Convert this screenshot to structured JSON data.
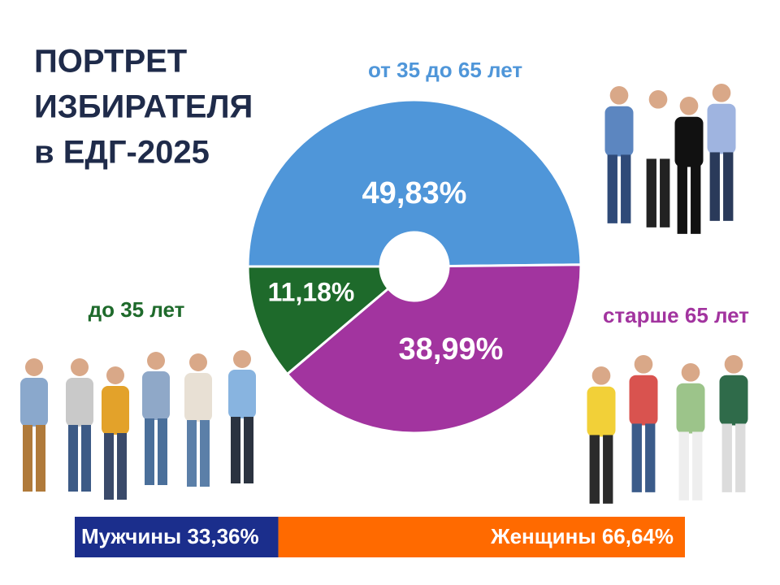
{
  "chart_data": [
    {
      "type": "donut",
      "title": [
        "ПОРТРЕТ",
        "ИЗБИРАТЕЛЯ",
        "в ЕДГ-2025"
      ],
      "categories": [
        "от 35 до 65 лет",
        "старше 65 лет",
        "до 35 лет"
      ],
      "values": [
        49.83,
        38.99,
        11.18
      ],
      "value_labels": [
        "49,83%",
        "38,99%",
        "11,18%"
      ],
      "colors": [
        "#4f96d9",
        "#a2349f",
        "#1e6a2b"
      ]
    },
    {
      "type": "stacked-bar",
      "series": [
        {
          "name": "Мужчины",
          "color": "#1b2e8c",
          "values": [
            33.36
          ],
          "value_labels": [
            "33,36%"
          ]
        },
        {
          "name": "Женщины",
          "color": "#ff6a00",
          "values": [
            66.64
          ],
          "value_labels": [
            "66,64%"
          ]
        }
      ]
    }
  ]
}
